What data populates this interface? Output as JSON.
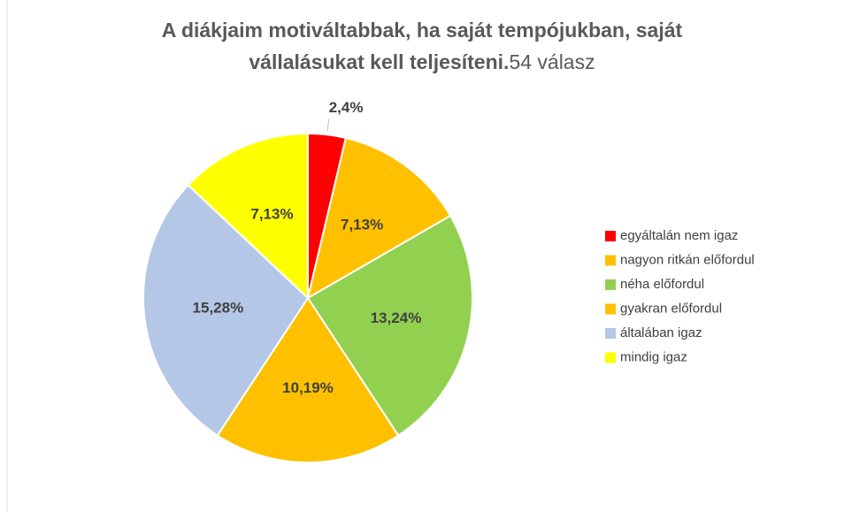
{
  "chart_data": {
    "type": "pie",
    "title": [
      "A diákjaim motiváltabbak, ha saját tempójukban, saját",
      "vállalásukat kell teljesíteni."
    ],
    "subtitle": "54 válasz",
    "categories": [
      "egyáltalán nem igaz",
      " nagyon ritkán előfordul",
      "néha előfordul",
      "gyakran előfordul",
      " általában igaz",
      "mindig igaz"
    ],
    "values": [
      2,
      7,
      13,
      10,
      15,
      7
    ],
    "value_labels": [
      "2,4%",
      "7,13%",
      "13,24%",
      "10,19%",
      "15,28%",
      "7,13%"
    ],
    "colors": [
      "#ff0000",
      "#ffc000",
      "#92d050",
      "#ffc000",
      "#b4c7e7",
      "#ffff00"
    ],
    "legend": "right"
  }
}
